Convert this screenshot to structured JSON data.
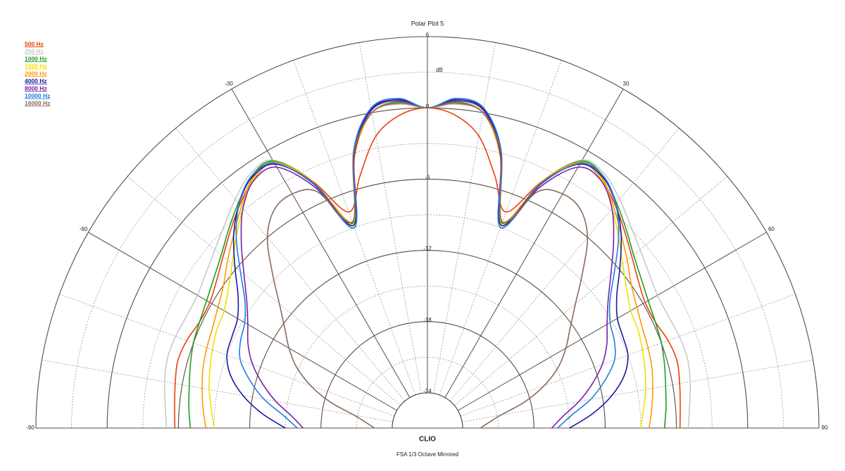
{
  "chart_data": {
    "type": "polar",
    "title": "Polar Plot 5",
    "r_label": "dB",
    "brand": "CLIO",
    "footer": "FSA   1/3 Octave   Mirrored",
    "rlim": [
      -24,
      6
    ],
    "rticks": [
      -24,
      -18,
      -12,
      -6,
      0,
      6
    ],
    "thetalim": [
      -90,
      90
    ],
    "thetaticks": [
      -90,
      -60,
      -30,
      30,
      60,
      90
    ],
    "x": [
      -90,
      -85,
      -80,
      -75,
      -70,
      -65,
      -60,
      -55,
      -50,
      -45,
      -40,
      -35,
      -30,
      -25,
      -20,
      -15,
      -10,
      -5,
      0,
      5,
      10,
      15,
      20,
      25,
      30,
      35,
      40,
      45,
      50,
      55,
      60,
      65,
      70,
      75,
      80,
      85,
      90
    ],
    "series": [
      {
        "name": "500 Hz",
        "color": "#e8400c",
        "values": [
          -5.7,
          -5.6,
          -5.4,
          -5.2,
          -5.4,
          -5.8,
          -5.8,
          -5.3,
          -4.5,
          -3.5,
          -2.4,
          -1.4,
          -1.2,
          -4,
          -7.6,
          -5,
          -2,
          -0.5,
          0,
          -0.5,
          -2,
          -5,
          -7.6,
          -4,
          -1.2,
          -1.4,
          -2.4,
          -3.5,
          -4.5,
          -5.3,
          -5.8,
          -5.8,
          -5.4,
          -5.2,
          -5.4,
          -5.6,
          -5.7
        ]
      },
      {
        "name": "250 Hz",
        "color": "#c8c8c8",
        "values": [
          -5,
          -4.8,
          -4.5,
          -4.3,
          -4.4,
          -4.6,
          -4.6,
          -4.2,
          -3.6,
          -2.8,
          -1.8,
          -0.9,
          -0.9,
          -4,
          -8.5,
          -3,
          0,
          0.4,
          0,
          0.4,
          0,
          -3,
          -8.5,
          -4,
          -0.9,
          -0.9,
          -1.8,
          -2.8,
          -3.6,
          -4.2,
          -4.6,
          -4.6,
          -4.4,
          -4.3,
          -4.5,
          -4.8,
          -5
        ]
      },
      {
        "name": "1000 Hz",
        "color": "#1e9e1e",
        "values": [
          -7,
          -6.8,
          -6.6,
          -6.3,
          -6,
          -5.8,
          -5.5,
          -5,
          -4.3,
          -3.3,
          -2.2,
          -1.1,
          -1,
          -4,
          -8.6,
          -3.2,
          0,
          0.6,
          0,
          0.6,
          0,
          -3.2,
          -8.6,
          -4,
          -1,
          -1.1,
          -2.2,
          -3.3,
          -4.3,
          -5,
          -5.5,
          -5.8,
          -6,
          -6.3,
          -6.6,
          -6.8,
          -7
        ]
      },
      {
        "name": "1500 Hz",
        "color": "#f2e000",
        "values": [
          -9,
          -8.7,
          -8.3,
          -8,
          -7.7,
          -7.4,
          -7.2,
          -6.5,
          -5.5,
          -4.2,
          -2.8,
          -1.4,
          -1.2,
          -4.2,
          -8.7,
          -3.3,
          0,
          0.5,
          0,
          0.5,
          0,
          -3.3,
          -8.7,
          -4.2,
          -1.2,
          -1.4,
          -2.8,
          -4.2,
          -5.5,
          -6.5,
          -7.2,
          -7.4,
          -7.7,
          -8,
          -8.3,
          -8.7,
          -9
        ]
      },
      {
        "name": "2000 Hz",
        "color": "#ff9900",
        "values": [
          -8.3,
          -8,
          -7.7,
          -7.4,
          -7.2,
          -7,
          -6.6,
          -6,
          -5,
          -3.9,
          -2.6,
          -1.3,
          -1.1,
          -4,
          -8.5,
          -3.2,
          0,
          0.5,
          0,
          0.5,
          0,
          -3.2,
          -8.5,
          -4,
          -1.1,
          -1.3,
          -2.6,
          -3.9,
          -5,
          -6,
          -6.6,
          -7,
          -7.2,
          -7.4,
          -7.7,
          -8,
          -8.3
        ]
      },
      {
        "name": "4000 Hz",
        "color": "#1a1aa0",
        "values": [
          -15,
          -13,
          -11.2,
          -9.8,
          -9,
          -8.8,
          -8.5,
          -7.5,
          -5.8,
          -3.9,
          -2.3,
          -1.2,
          -1.3,
          -4.2,
          -8.8,
          -3,
          0.3,
          0.8,
          0,
          0.8,
          0.3,
          -3,
          -8.8,
          -4.2,
          -1.3,
          -1.2,
          -2.3,
          -3.9,
          -5.8,
          -7.5,
          -8.5,
          -8.8,
          -9,
          -9.8,
          -11.2,
          -13,
          -15
        ]
      },
      {
        "name": "8000 Hz",
        "color": "#7a1fa8",
        "values": [
          -16.5,
          -15.5,
          -14,
          -12.6,
          -11.3,
          -10.3,
          -9.5,
          -8.4,
          -6.8,
          -4.8,
          -2.8,
          -1.5,
          -1.6,
          -4.6,
          -9,
          -3.2,
          0.2,
          0.7,
          0,
          0.7,
          0.2,
          -3.2,
          -9,
          -4.6,
          -1.6,
          -1.5,
          -2.8,
          -4.8,
          -6.8,
          -8.4,
          -9.5,
          -10.3,
          -11.3,
          -12.6,
          -14,
          -15.5,
          -16.5
        ]
      },
      {
        "name": "10000 Hz",
        "color": "#1e7fe0",
        "values": [
          -16,
          -14.8,
          -13,
          -11.5,
          -10.2,
          -9.6,
          -9.2,
          -8.2,
          -6.4,
          -4.2,
          -2.3,
          -1.1,
          -1.2,
          -4.3,
          -9,
          -2.9,
          0.4,
          0.9,
          0,
          0.9,
          0.4,
          -2.9,
          -9,
          -4.3,
          -1.2,
          -1.1,
          -2.3,
          -4.2,
          -6.4,
          -8.2,
          -9.2,
          -9.6,
          -10.2,
          -11.5,
          -13,
          -14.8,
          -16
        ]
      },
      {
        "name": "16000 Hz",
        "color": "#8a6a5a",
        "values": [
          -22.5,
          -21.8,
          -20.7,
          -18.5,
          -16.5,
          -14.8,
          -13.5,
          -12.3,
          -10.7,
          -8.5,
          -6,
          -4.5,
          -4.2,
          -5,
          -8.5,
          -3,
          0,
          0.5,
          0,
          0.5,
          0,
          -3,
          -8.5,
          -5,
          -4.2,
          -4.5,
          -6,
          -8.5,
          -10.7,
          -12.3,
          -13.5,
          -14.8,
          -16.5,
          -18.5,
          -20.7,
          -21.8,
          -22.5
        ]
      }
    ]
  }
}
